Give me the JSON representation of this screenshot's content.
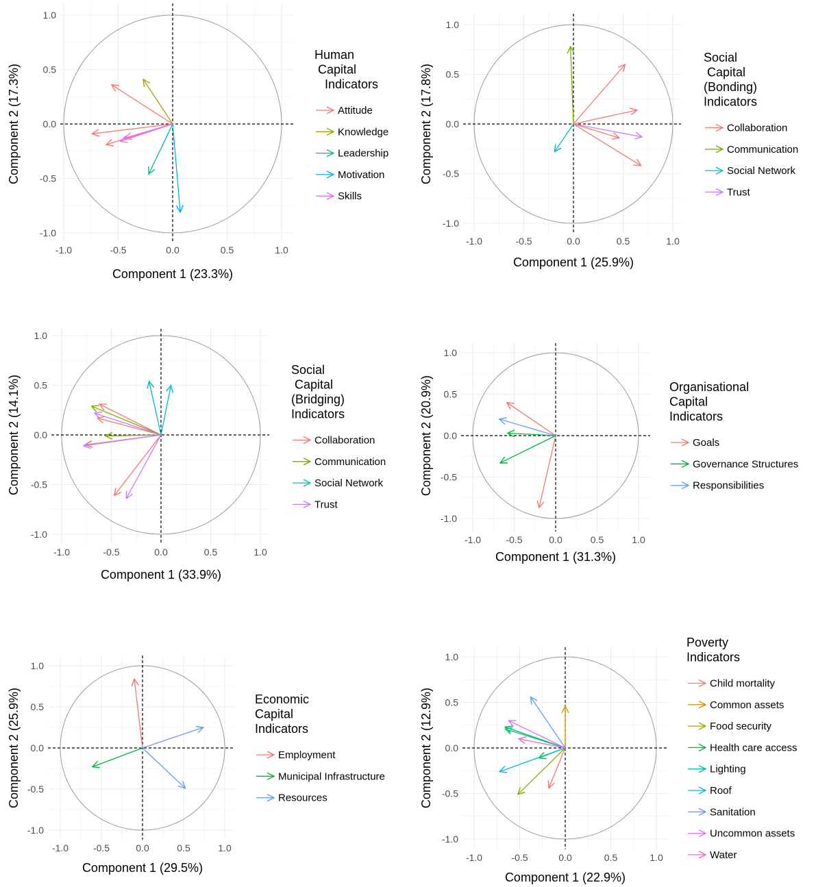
{
  "chart_data": [
    {
      "type": "pca-correlation-circle",
      "xlabel": "Component 1 (23.3%)",
      "ylabel": "Component 2 (17.3%)",
      "xlim": [
        -1.0,
        1.0
      ],
      "ylim": [
        -1.0,
        1.0
      ],
      "x_ticks": [
        "-1.0",
        "-0.5",
        "0.0",
        "0.5",
        "1.0"
      ],
      "y_ticks": [
        "-1.0",
        "-0.5",
        "0.0",
        "0.5",
        "1.0"
      ],
      "grid": true,
      "legend_title": [
        "Human",
        " Capital",
        "   Indicators"
      ],
      "legend_position": "right",
      "series": [
        {
          "name": "Attitude",
          "color": "#F8766D",
          "vectors": [
            [
              -0.56,
              0.36
            ],
            [
              -0.74,
              -0.09
            ],
            [
              -0.61,
              -0.19
            ]
          ]
        },
        {
          "name": "Knowledge",
          "color": "#A3A500",
          "vectors": [
            [
              -0.27,
              0.41
            ]
          ]
        },
        {
          "name": "Leadership",
          "color": "#00BF7D",
          "vectors": [
            [
              -0.22,
              -0.46
            ]
          ]
        },
        {
          "name": "Motivation",
          "color": "#00B0F6",
          "vectors": [
            [
              0.07,
              -0.81
            ]
          ]
        },
        {
          "name": "Skills",
          "color": "#E76BF3",
          "vectors": [
            [
              -0.48,
              -0.16
            ],
            [
              -0.44,
              -0.13
            ]
          ]
        }
      ]
    },
    {
      "type": "pca-correlation-circle",
      "xlabel": "Component 1 (25.9%)",
      "ylabel": "Component 2 (17.8%)",
      "xlim": [
        -1.0,
        1.0
      ],
      "ylim": [
        -1.0,
        1.0
      ],
      "x_ticks": [
        "-1.0",
        "-0.5",
        "0.0",
        "0.5",
        "1.0"
      ],
      "y_ticks": [
        "-1.0",
        "-0.5",
        "0.0",
        "0.5",
        "1.0"
      ],
      "grid": true,
      "legend_title": [
        "Social",
        " Capital",
        "(Bonding)",
        "Indicators"
      ],
      "legend_position": "right",
      "series": [
        {
          "name": "Collaboration",
          "color": "#F8766D",
          "vectors": [
            [
              0.52,
              0.6
            ],
            [
              0.64,
              0.14
            ],
            [
              0.46,
              -0.14
            ],
            [
              0.68,
              -0.42
            ]
          ]
        },
        {
          "name": "Communication",
          "color": "#7CAE00",
          "vectors": [
            [
              -0.03,
              0.78
            ]
          ]
        },
        {
          "name": "Social Network",
          "color": "#00BFC4",
          "vectors": [
            [
              -0.19,
              -0.28
            ]
          ]
        },
        {
          "name": "Trust",
          "color": "#C77CFF",
          "vectors": [
            [
              0.69,
              -0.13
            ]
          ]
        }
      ]
    },
    {
      "type": "pca-correlation-circle",
      "xlabel": "Component 1 (33.9%)",
      "ylabel": "Component 2 (14.1%)",
      "xlim": [
        -1.0,
        1.0
      ],
      "ylim": [
        -1.0,
        1.0
      ],
      "x_ticks": [
        "-1.0",
        "-0.5",
        "0.0",
        "0.5",
        "1.0"
      ],
      "y_ticks": [
        "-1.0",
        "-0.5",
        "0.0",
        "0.5",
        "1.0"
      ],
      "grid": true,
      "legend_title": [
        "Social",
        " Capital",
        "(Bridging)",
        "Indicators"
      ],
      "legend_position": "right",
      "series": [
        {
          "name": "Collaboration",
          "color": "#F8766D",
          "vectors": [
            [
              -0.62,
              0.31
            ],
            [
              -0.64,
              0.17
            ],
            [
              -0.76,
              -0.1
            ],
            [
              -0.47,
              -0.61
            ]
          ]
        },
        {
          "name": "Communication",
          "color": "#7CAE00",
          "vectors": [
            [
              -0.7,
              0.29
            ],
            [
              -0.56,
              -0.01
            ]
          ]
        },
        {
          "name": "Social Network",
          "color": "#00BFC4",
          "vectors": [
            [
              -0.12,
              0.54
            ],
            [
              0.1,
              0.5
            ]
          ]
        },
        {
          "name": "Trust",
          "color": "#C77CFF",
          "vectors": [
            [
              -0.67,
              0.22
            ],
            [
              -0.78,
              -0.11
            ],
            [
              -0.35,
              -0.64
            ]
          ]
        }
      ]
    },
    {
      "type": "pca-correlation-circle",
      "xlabel": "Component 1 (31.3%)",
      "ylabel": "Component 2 (20.9%)",
      "xlim": [
        -1.0,
        1.0
      ],
      "ylim": [
        -1.0,
        1.0
      ],
      "x_ticks": [
        "-1.0",
        "-0.5",
        "0.0",
        "0.5",
        "1.0"
      ],
      "y_ticks": [
        "-1.0",
        "-0.5",
        "0.0",
        "0.5",
        "1.0"
      ],
      "grid": true,
      "legend_title": [
        "Organisational",
        "Capital",
        "Indicators"
      ],
      "legend_position": "right",
      "series": [
        {
          "name": "Goals",
          "color": "#F8766D",
          "vectors": [
            [
              -0.59,
              0.4
            ],
            [
              -0.2,
              -0.87
            ]
          ]
        },
        {
          "name": "Governance Structures",
          "color": "#00BA38",
          "vectors": [
            [
              -0.58,
              0.03
            ],
            [
              -0.67,
              -0.33
            ]
          ]
        },
        {
          "name": "Responsibilities",
          "color": "#619CFF",
          "vectors": [
            [
              -0.68,
              0.2
            ]
          ]
        }
      ]
    },
    {
      "type": "pca-correlation-circle",
      "xlabel": "Component 1 (29.5%)",
      "ylabel": "Component 2 (25.9%)",
      "xlim": [
        -1.0,
        1.0
      ],
      "ylim": [
        -1.0,
        1.0
      ],
      "x_ticks": [
        "-1.0",
        "-0.5",
        "0.0",
        "0.5",
        "1.0"
      ],
      "y_ticks": [
        "-1.0",
        "-0.5",
        "0.0",
        "0.5",
        "1.0"
      ],
      "grid": true,
      "legend_title": [
        "Economic",
        "Capital",
        "Indicators"
      ],
      "legend_position": "right",
      "series": [
        {
          "name": "Employment",
          "color": "#F8766D",
          "vectors": [
            [
              -0.1,
              0.84
            ]
          ]
        },
        {
          "name": "Municipal Infrastructure",
          "color": "#00BA38",
          "vectors": [
            [
              -0.61,
              -0.23
            ]
          ]
        },
        {
          "name": "Resources",
          "color": "#619CFF",
          "vectors": [
            [
              0.74,
              0.25
            ],
            [
              0.52,
              -0.49
            ]
          ]
        }
      ]
    },
    {
      "type": "pca-correlation-circle",
      "xlabel": "Component 1 (22.9%)",
      "ylabel": "Component 2 (12.9%)",
      "xlim": [
        -1.0,
        1.0
      ],
      "ylim": [
        -1.0,
        1.0
      ],
      "x_ticks": [
        "-1.0",
        "-0.5",
        "0.0",
        "0.5",
        "1.0"
      ],
      "y_ticks": [
        "-1.0",
        "-0.5",
        "0.0",
        "0.5",
        "1.0"
      ],
      "grid": true,
      "legend_title": [
        "Poverty",
        "Indicators"
      ],
      "legend_position": "right",
      "series": [
        {
          "name": "Child mortality",
          "color": "#F8766D",
          "vectors": [
            [
              -0.18,
              -0.44
            ]
          ]
        },
        {
          "name": "Common assets",
          "color": "#D39200",
          "vectors": [
            [
              0.0,
              0.46
            ]
          ]
        },
        {
          "name": "Food security",
          "color": "#93AA00",
          "vectors": [
            [
              -0.52,
              -0.51
            ]
          ]
        },
        {
          "name": "Health care access",
          "color": "#00BA38",
          "vectors": [
            [
              -0.66,
              0.23
            ],
            [
              -0.29,
              -0.11
            ]
          ]
        },
        {
          "name": "Lighting",
          "color": "#00C19F",
          "vectors": [
            [
              -0.66,
              0.21
            ]
          ]
        },
        {
          "name": "Roof",
          "color": "#00B9E3",
          "vectors": [
            [
              -0.72,
              -0.26
            ]
          ]
        },
        {
          "name": "Sanitation",
          "color": "#619CFF",
          "vectors": [
            [
              -0.38,
              0.56
            ]
          ]
        },
        {
          "name": "Uncommon assets",
          "color": "#DB72FB",
          "vectors": [
            [
              -0.62,
              0.3
            ]
          ]
        },
        {
          "name": "Water",
          "color": "#FF61C3",
          "vectors": [
            [
              -0.51,
              0.1
            ]
          ]
        }
      ]
    }
  ]
}
